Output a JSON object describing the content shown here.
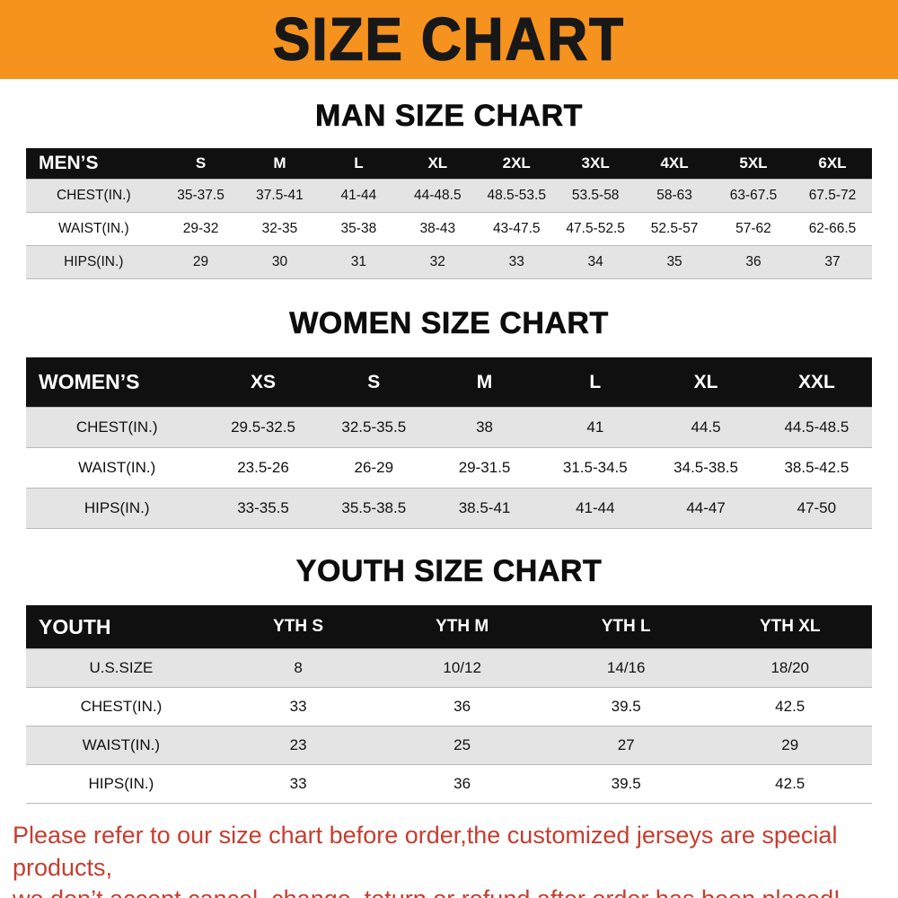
{
  "colors": {
    "banner_bg": "#f6921e",
    "header_bg": "#101010",
    "stripe": "#e4e4e4",
    "notice_red": "#c63d2f"
  },
  "banner": {
    "title": "SIZE CHART"
  },
  "sections": [
    {
      "id": "men",
      "heading": "MAN SIZE CHART"
    },
    {
      "id": "women",
      "heading": "WOMEN SIZE CHART"
    },
    {
      "id": "youth",
      "heading": "YOUTH SIZE CHART"
    }
  ],
  "tables": [
    {
      "id": "men",
      "header": [
        "MEN’S",
        "S",
        "M",
        "L",
        "XL",
        "2XL",
        "3XL",
        "4XL",
        "5XL",
        "6XL"
      ],
      "rows": [
        [
          "CHEST(IN.)",
          "35-37.5",
          "37.5-41",
          "41-44",
          "44-48.5",
          "48.5-53.5",
          "53.5-58",
          "58-63",
          "63-67.5",
          "67.5-72"
        ],
        [
          "WAIST(IN.)",
          "29-32",
          "32-35",
          "35-38",
          "38-43",
          "43-47.5",
          "47.5-52.5",
          "52.5-57",
          "57-62",
          "62-66.5"
        ],
        [
          "HIPS(IN.)",
          "29",
          "30",
          "31",
          "32",
          "33",
          "34",
          "35",
          "36",
          "37"
        ]
      ]
    },
    {
      "id": "women",
      "header": [
        "WOMEN’S",
        "XS",
        "S",
        "M",
        "L",
        "XL",
        "XXL"
      ],
      "rows": [
        [
          "CHEST(IN.)",
          "29.5-32.5",
          "32.5-35.5",
          "38",
          "41",
          "44.5",
          "44.5-48.5"
        ],
        [
          "WAIST(IN.)",
          "23.5-26",
          "26-29",
          "29-31.5",
          "31.5-34.5",
          "34.5-38.5",
          "38.5-42.5"
        ],
        [
          "HIPS(IN.)",
          "33-35.5",
          "35.5-38.5",
          "38.5-41",
          "41-44",
          "44-47",
          "47-50"
        ]
      ]
    },
    {
      "id": "youth",
      "header": [
        "YOUTH",
        "YTH S",
        "YTH M",
        "YTH L",
        "YTH XL"
      ],
      "rows": [
        [
          "U.S.SIZE",
          "8",
          "10/12",
          "14/16",
          "18/20"
        ],
        [
          "CHEST(IN.)",
          "33",
          "36",
          "39.5",
          "42.5"
        ],
        [
          "WAIST(IN.)",
          "23",
          "25",
          "27",
          "29"
        ],
        [
          "HIPS(IN.)",
          "33",
          "36",
          "39.5",
          "42.5"
        ]
      ]
    }
  ],
  "footer": {
    "line1": "Please refer to our size chart before order,the customized jerseys are special products,",
    "line2": "we don’t accept cancel, change, teturn or refund after order has been placed!"
  }
}
